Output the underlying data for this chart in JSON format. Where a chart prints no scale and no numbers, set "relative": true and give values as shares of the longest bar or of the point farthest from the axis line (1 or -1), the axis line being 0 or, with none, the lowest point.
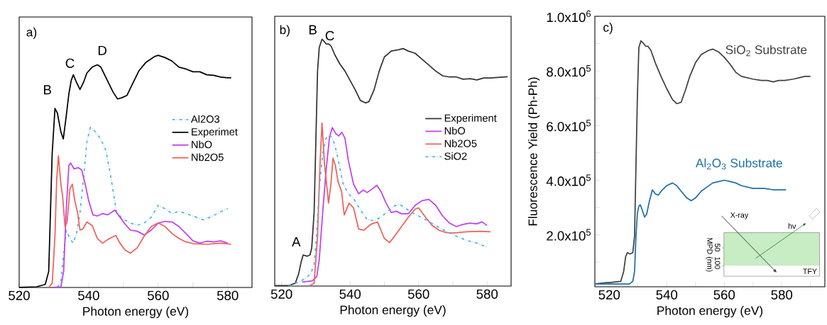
{
  "chart_data": [
    {
      "type": "line",
      "relative": true,
      "xlabel": "Photon energy (eV)",
      "xlim": [
        520,
        587
      ],
      "xticks": [
        520,
        {
          "value": 530,
          "label": null
        },
        540,
        {
          "value": 550,
          "label": null
        },
        560,
        {
          "value": 570,
          "label": null
        },
        580
      ],
      "legend": "right",
      "marker": "none",
      "annotations": [
        "a)",
        "B",
        "C",
        "D"
      ],
      "series": [
        {
          "name": "Al2O3",
          "color": "#55b4e0",
          "line_style": "dashdot",
          "x": [
            531,
            532,
            533,
            533.5,
            534.3,
            535.5,
            536.5,
            537.5,
            538.5,
            539.5,
            540.5,
            542,
            543.5,
            545,
            546.5,
            548,
            550,
            552,
            554,
            556,
            558,
            560,
            562,
            564,
            566,
            568,
            570,
            573,
            575,
            577,
            579,
            580
          ],
          "values": [
            0,
            0.028,
            0.171,
            0.247,
            0.221,
            0.19,
            0.232,
            0.323,
            0.466,
            0.629,
            0.69,
            0.67,
            0.639,
            0.588,
            0.466,
            0.324,
            0.293,
            0.278,
            0.268,
            0.278,
            0.303,
            0.354,
            0.339,
            0.318,
            0.328,
            0.318,
            0.308,
            0.291,
            0.303,
            0.318,
            0.334,
            0.339
          ]
        },
        {
          "name": "Experimet",
          "color": "#000000",
          "x": [
            520,
            525,
            527.5,
            528.5,
            529,
            529.5,
            530.3,
            531,
            532,
            532.7,
            533.5,
            534.3,
            535,
            535.6,
            536.5,
            537.5,
            538.5,
            539.5,
            541,
            542.5,
            543.5,
            545,
            547,
            548.3,
            549.5,
            551,
            552.5,
            554.5,
            556.5,
            559,
            560,
            562,
            564,
            566,
            568,
            570,
            572,
            574,
            576,
            578,
            580,
            581
          ],
          "values": [
            0,
            0.003,
            0.013,
            0.069,
            0.323,
            0.578,
            0.771,
            0.751,
            0.67,
            0.64,
            0.733,
            0.834,
            0.893,
            0.916,
            0.883,
            0.853,
            0.883,
            0.924,
            0.949,
            0.959,
            0.949,
            0.903,
            0.842,
            0.812,
            0.817,
            0.827,
            0.873,
            0.934,
            0.97,
            0.995,
            1.0,
            0.99,
            0.975,
            0.949,
            0.941,
            0.929,
            0.929,
            0.916,
            0.914,
            0.906,
            0.903,
            0.903
          ]
        },
        {
          "name": "NbO",
          "color": "#c040f0",
          "x": [
            530,
            532,
            532.8,
            533.5,
            534.3,
            534.8,
            535.8,
            537,
            538,
            539,
            540,
            541.2,
            542.5,
            544,
            545.5,
            547.5,
            549,
            550.5,
            552,
            554,
            556,
            558,
            560,
            562,
            564,
            566,
            568,
            570,
            572,
            574,
            576,
            578,
            580
          ],
          "values": [
            0,
            0.003,
            0.069,
            0.323,
            0.526,
            0.536,
            0.511,
            0.516,
            0.506,
            0.445,
            0.374,
            0.313,
            0.308,
            0.318,
            0.313,
            0.333,
            0.303,
            0.272,
            0.247,
            0.242,
            0.226,
            0.247,
            0.277,
            0.285,
            0.282,
            0.262,
            0.232,
            0.201,
            0.191,
            0.199,
            0.196,
            0.201,
            0.191
          ]
        },
        {
          "name": "Nb2O5",
          "color": "#f0605a",
          "x": [
            528.5,
            529.5,
            530.3,
            530.8,
            531.3,
            532,
            532.5,
            533.2,
            533.8,
            534.6,
            535.3,
            536,
            536.8,
            537.5,
            538.3,
            539.5,
            541,
            542.5,
            544,
            546,
            547.8,
            549,
            550.5,
            552,
            554,
            556,
            558,
            560,
            562,
            564,
            566,
            568,
            570,
            574,
            578,
            581
          ],
          "values": [
            0,
            0.018,
            0.222,
            0.466,
            0.567,
            0.445,
            0.394,
            0.262,
            0.282,
            0.425,
            0.445,
            0.374,
            0.323,
            0.247,
            0.252,
            0.282,
            0.267,
            0.211,
            0.191,
            0.211,
            0.224,
            0.191,
            0.161,
            0.148,
            0.171,
            0.222,
            0.262,
            0.278,
            0.262,
            0.232,
            0.211,
            0.196,
            0.189,
            0.186,
            0.191,
            0.186
          ]
        }
      ]
    },
    {
      "type": "line",
      "relative": true,
      "xlabel": "Photon energy (eV)",
      "xlim": [
        518,
        587
      ],
      "xticks": [
        520,
        {
          "value": 530,
          "label": null
        },
        540,
        {
          "value": 550,
          "label": null
        },
        560,
        {
          "value": 570,
          "label": null
        },
        580
      ],
      "legend": "right",
      "marker": "none",
      "annotations": [
        "b)",
        "A",
        "B",
        "C"
      ],
      "series": [
        {
          "name": "Experiment",
          "color": "#333333",
          "x": [
            518,
            522,
            524,
            525,
            525.7,
            526.3,
            527.5,
            528.3,
            528.8,
            529.5,
            530,
            530.5,
            531,
            531.8,
            532.2,
            533,
            533.8,
            534.5,
            535.5,
            537,
            538.5,
            540,
            541.5,
            543,
            544.5,
            545.5,
            547,
            548.5,
            550,
            552,
            554,
            555.5,
            557,
            559,
            561,
            563,
            565,
            567,
            569,
            571,
            573,
            575,
            577,
            579,
            581,
            583,
            586
          ],
          "values": [
            0.002,
            0.002,
            0.011,
            0.05,
            0.097,
            0.126,
            0.121,
            0.126,
            0.155,
            0.298,
            0.585,
            0.871,
            0.967,
            1.0,
            0.995,
            0.981,
            0.981,
            0.971,
            0.938,
            0.9,
            0.871,
            0.833,
            0.795,
            0.752,
            0.742,
            0.747,
            0.795,
            0.871,
            0.928,
            0.952,
            0.957,
            0.962,
            0.952,
            0.943,
            0.919,
            0.895,
            0.871,
            0.852,
            0.847,
            0.847,
            0.838,
            0.84,
            0.835,
            0.843,
            0.843,
            0.845,
            0.848
          ]
        },
        {
          "name": "NbO",
          "color": "#c040f0",
          "x": [
            526,
            529,
            530.3,
            531,
            532,
            533,
            534,
            534.8,
            535.8,
            536.7,
            537.6,
            538.5,
            539.5,
            541,
            542.5,
            543.8,
            545,
            546.5,
            547.8,
            549,
            550.5,
            552,
            553.5,
            555,
            557,
            559,
            561,
            563,
            565,
            567,
            569,
            571,
            573,
            575,
            577,
            578.5,
            580
          ],
          "values": [
            0.016,
            0.021,
            0.04,
            0.107,
            0.298,
            0.47,
            0.604,
            0.642,
            0.618,
            0.608,
            0.623,
            0.599,
            0.508,
            0.413,
            0.374,
            0.389,
            0.379,
            0.394,
            0.408,
            0.384,
            0.336,
            0.298,
            0.303,
            0.293,
            0.293,
            0.327,
            0.346,
            0.351,
            0.327,
            0.284,
            0.255,
            0.241,
            0.25,
            0.255,
            0.252,
            0.26,
            0.245
          ]
        },
        {
          "name": "Nb2O5",
          "color": "#f0605a",
          "x": [
            528,
            529.5,
            530.5,
            531.2,
            531.8,
            532.5,
            533,
            533.7,
            534.4,
            535,
            535.7,
            536.5,
            537.5,
            538.3,
            539.7,
            541,
            542.5,
            544,
            546,
            548,
            550,
            551.5,
            553,
            555,
            557,
            559,
            560,
            562,
            564,
            566,
            568,
            570,
            574,
            578,
            581
          ],
          "values": [
            0,
            0.011,
            0.202,
            0.489,
            0.661,
            0.499,
            0.432,
            0.336,
            0.413,
            0.518,
            0.489,
            0.422,
            0.384,
            0.288,
            0.336,
            0.317,
            0.231,
            0.226,
            0.25,
            0.26,
            0.193,
            0.176,
            0.202,
            0.241,
            0.279,
            0.312,
            0.317,
            0.279,
            0.245,
            0.226,
            0.217,
            0.215,
            0.22,
            0.222,
            0.22
          ]
        },
        {
          "name": "SiO2",
          "color": "#55b4e0",
          "line_style": "dashdot",
          "x": [
            522,
            525,
            527,
            528.5,
            529.5,
            530.2,
            531,
            532,
            533,
            534,
            535,
            536,
            537,
            538,
            539.5,
            541,
            543,
            545,
            547,
            549,
            551,
            553,
            554.5,
            556,
            558,
            560,
            562,
            565,
            568,
            571,
            574,
            577,
            580
          ],
          "values": [
            0.002,
            0.016,
            0.031,
            0.05,
            0.088,
            0.202,
            0.394,
            0.537,
            0.599,
            0.613,
            0.594,
            0.546,
            0.479,
            0.413,
            0.374,
            0.355,
            0.308,
            0.269,
            0.265,
            0.279,
            0.303,
            0.325,
            0.331,
            0.317,
            0.298,
            0.284,
            0.269,
            0.245,
            0.222,
            0.202,
            0.185,
            0.174,
            0.157
          ]
        }
      ]
    },
    {
      "type": "line",
      "xlabel": "Photon energy (eV)",
      "ylabel": "Fluorescence Yield (Ph-Ph)",
      "xlim": [
        515,
        595
      ],
      "ylim": [
        10000,
        1000000
      ],
      "xticks": [
        520,
        {
          "value": 530,
          "label": null
        },
        540,
        {
          "value": 550,
          "label": null
        },
        560,
        {
          "value": 570,
          "label": null
        },
        580,
        {
          "value": 590,
          "label": null
        }
      ],
      "yticks": [
        {
          "value": 100000,
          "label": null
        },
        {
          "value": 200000,
          "label": "2.0x10$^{5}$"
        },
        {
          "value": 300000,
          "label": null
        },
        {
          "value": 400000,
          "label": "4.0x10$^{5}$"
        },
        {
          "value": 500000,
          "label": null
        },
        {
          "value": 600000,
          "label": "6.0x10$^{5}$"
        },
        {
          "value": 700000,
          "label": null
        },
        {
          "value": 800000,
          "label": "8.0x10$^{5}$"
        },
        {
          "value": 900000,
          "label": null
        },
        {
          "value": 1000000,
          "label": "1.0x10$^{6}$"
        }
      ],
      "marker": "none",
      "annotations": [
        "c)",
        "X-ray",
        "hν",
        "MPD (nm)",
        "50",
        "100",
        "TFY"
      ],
      "series": [
        {
          "name": "SiO$_{2}$ Substrate",
          "color": "#404040",
          "x": [
            515,
            519,
            520,
            524,
            525,
            525.7,
            526.3,
            527.2,
            528.2,
            528.8,
            529.3,
            529.8,
            530.3,
            531,
            532,
            532.7,
            533.5,
            534.5,
            536,
            538,
            540,
            542,
            543.5,
            545,
            546.5,
            548,
            550,
            552,
            554.5,
            556,
            558,
            560,
            562,
            564,
            566,
            568,
            570,
            573,
            575,
            577,
            579,
            581,
            584,
            586,
            588,
            590
          ],
          "values": [
            20000,
            25000,
            25000,
            30000,
            65000,
            120000,
            135000,
            130000,
            135000,
            195000,
            455000,
            710000,
            885000,
            910000,
            900000,
            890000,
            890000,
            875000,
            830000,
            780000,
            735000,
            695000,
            680000,
            685000,
            730000,
            780000,
            830000,
            860000,
            875000,
            880000,
            870000,
            850000,
            825000,
            795000,
            780000,
            775000,
            770000,
            765000,
            765000,
            760000,
            765000,
            765000,
            770000,
            775000,
            780000,
            780000
          ]
        },
        {
          "name": "Al$_{2}$O$_{3}$ Substrate",
          "color": "#1f6fa8",
          "x": [
            515,
            524,
            527,
            528.2,
            528.8,
            529.3,
            529.8,
            530.3,
            530.8,
            531.5,
            532.3,
            533,
            534,
            535,
            536,
            537,
            538.5,
            540,
            542,
            543.5,
            545,
            547,
            548.5,
            550,
            552,
            554,
            556,
            558,
            560,
            562,
            564,
            566,
            568,
            570,
            574,
            577,
            580,
            581.5
          ],
          "values": [
            20000,
            20000,
            20000,
            30000,
            65000,
            195000,
            280000,
            305000,
            310000,
            290000,
            265000,
            275000,
            325000,
            365000,
            350000,
            345000,
            365000,
            380000,
            390000,
            380000,
            360000,
            335000,
            325000,
            335000,
            360000,
            375000,
            390000,
            395000,
            400000,
            395000,
            390000,
            380000,
            375000,
            370000,
            370000,
            365000,
            365000,
            365000
          ]
        }
      ]
    }
  ]
}
